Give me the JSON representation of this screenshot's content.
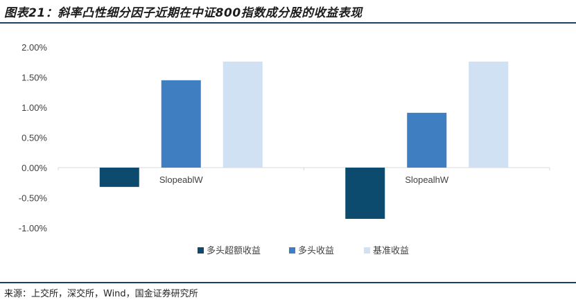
{
  "title": "图表21：斜率凸性细分因子近期在中证800指数成分股的收益表现",
  "source": "来源：上交所，深交所，Wind，国金证券研究所",
  "chart_data": {
    "type": "bar",
    "categories": [
      "SlopeablW",
      "SlopealhW"
    ],
    "series": [
      {
        "name": "多头超额收益",
        "color": "#0c4a6e",
        "values": [
          -0.32,
          -0.85
        ]
      },
      {
        "name": "多头收益",
        "color": "#3f7fc1",
        "values": [
          1.45,
          0.91
        ]
      },
      {
        "name": "基准收益",
        "color": "#cfe1f3",
        "values": [
          1.76,
          1.76
        ]
      }
    ],
    "yticks": [
      "2.00%",
      "1.50%",
      "1.00%",
      "0.50%",
      "0.00%",
      "-0.50%",
      "-1.00%"
    ],
    "ylim": [
      -1.0,
      2.0
    ],
    "ylabel": "",
    "xlabel": "",
    "legend_position": "bottom"
  }
}
